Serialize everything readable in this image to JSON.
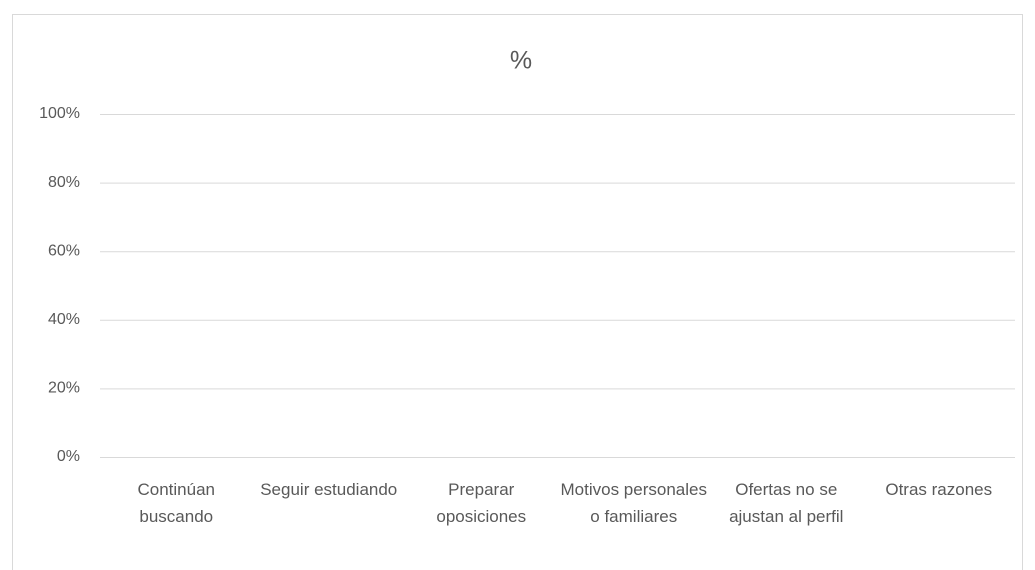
{
  "chart_data": {
    "type": "bar",
    "title": "%",
    "categories": [
      "Continúan buscando",
      "Seguir estudiando",
      "Preparar oposiciones",
      "Motivos personales o familiares",
      "Ofertas no se ajustan al perfil",
      "Otras razones"
    ],
    "ylim": [
      0,
      100
    ],
    "yticks": [
      {
        "value": 0,
        "label": "0%"
      },
      {
        "value": 20,
        "label": "20%"
      },
      {
        "value": 40,
        "label": "40%"
      },
      {
        "value": 60,
        "label": "60%"
      },
      {
        "value": 80,
        "label": "80%"
      },
      {
        "value": 100,
        "label": "100%"
      }
    ],
    "grid": true
  }
}
